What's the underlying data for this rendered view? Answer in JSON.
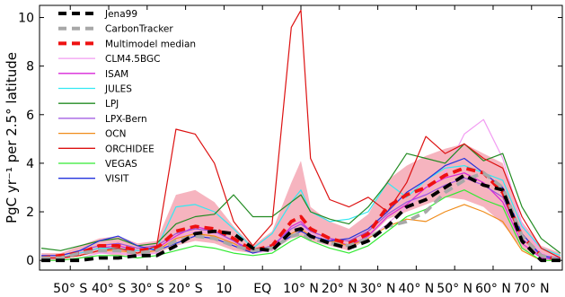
{
  "chart_data": {
    "type": "line",
    "xlabel": "",
    "ylabel": "PgC yr⁻¹ per 2.5° latitude",
    "xlim": [
      -58,
      78
    ],
    "ylim": [
      -0.4,
      10.5
    ],
    "yticks": [
      0,
      2,
      4,
      6,
      8,
      10
    ],
    "xticks": [
      {
        "value": -50,
        "label": "50° S"
      },
      {
        "value": -40,
        "label": "40° S"
      },
      {
        "value": -30,
        "label": "30° S"
      },
      {
        "value": -20,
        "label": "20° S"
      },
      {
        "value": -10,
        "label": "10"
      },
      {
        "value": 0,
        "label": "EQ"
      },
      {
        "value": 10,
        "label": "10° N"
      },
      {
        "value": 20,
        "label": "20° N"
      },
      {
        "value": 30,
        "label": "30° N"
      },
      {
        "value": 40,
        "label": "40° N"
      },
      {
        "value": 50,
        "label": "50° N"
      },
      {
        "value": 60,
        "label": "60° N"
      },
      {
        "value": 70,
        "label": "70° N"
      }
    ],
    "legend_position": "top-left",
    "band": {
      "color": "#f4a7b4",
      "lat": [
        -57.5,
        -52.5,
        -47.5,
        -42.5,
        -37.5,
        -32.5,
        -27.5,
        -22.5,
        -17.5,
        -12.5,
        -7.5,
        -2.5,
        2.5,
        7.5,
        10,
        12.5,
        17.5,
        22.5,
        27.5,
        32.5,
        37.5,
        42.5,
        47.5,
        52.5,
        57.5,
        62.5,
        67.5,
        72.5,
        77.5
      ],
      "lower": [
        0.0,
        0.0,
        0.2,
        0.3,
        0.2,
        0.2,
        0.3,
        0.6,
        0.8,
        0.7,
        0.4,
        0.3,
        0.4,
        0.9,
        1.0,
        0.8,
        0.6,
        0.4,
        0.9,
        1.7,
        2.0,
        2.3,
        2.6,
        2.5,
        2.2,
        1.5,
        0.5,
        0.1,
        0.0
      ],
      "upper": [
        0.3,
        0.3,
        0.6,
        0.9,
        1.0,
        0.7,
        0.8,
        2.7,
        2.9,
        2.4,
        1.4,
        0.6,
        1.2,
        3.2,
        4.1,
        2.2,
        1.6,
        1.3,
        1.9,
        3.3,
        3.9,
        4.3,
        4.6,
        4.8,
        4.4,
        4.0,
        1.6,
        0.6,
        0.3
      ]
    },
    "series": [
      {
        "name": "Jena99",
        "color": "#000000",
        "width": 3.8,
        "dash": "10,6",
        "lat": [
          -57.5,
          -52.5,
          -47.5,
          -42.5,
          -37.5,
          -32.5,
          -27.5,
          -22.5,
          -17.5,
          -12.5,
          -7.5,
          -2.5,
          2.5,
          7.5,
          10,
          12.5,
          17.5,
          22.5,
          27.5,
          32.5,
          37.5,
          42.5,
          47.5,
          52.5,
          57.5,
          62.5,
          67.5,
          72.5,
          77.5
        ],
        "y": [
          0.0,
          0.0,
          0.0,
          0.1,
          0.1,
          0.2,
          0.2,
          0.6,
          1.1,
          1.2,
          1.1,
          0.5,
          0.4,
          1.2,
          1.3,
          1.0,
          0.7,
          0.5,
          0.8,
          1.4,
          2.2,
          2.5,
          3.0,
          3.5,
          3.1,
          2.9,
          0.8,
          0.0,
          0.0
        ]
      },
      {
        "name": "CarbonTracker",
        "color": "#a8a8a8",
        "width": 3.8,
        "dash": "10,6",
        "lat": [
          -57.5,
          -52.5,
          -47.5,
          -42.5,
          -37.5,
          -32.5,
          -27.5,
          -22.5,
          -17.5,
          -12.5,
          -7.5,
          -2.5,
          2.5,
          7.5,
          10,
          12.5,
          17.5,
          22.5,
          27.5,
          32.5,
          37.5,
          42.5,
          47.5,
          52.5,
          57.5,
          62.5,
          67.5,
          72.5,
          77.5
        ],
        "y": [
          0.1,
          0.1,
          0.3,
          0.4,
          0.4,
          0.3,
          0.4,
          0.8,
          1.0,
          0.9,
          0.6,
          0.4,
          0.5,
          1.0,
          1.1,
          0.9,
          0.7,
          0.6,
          0.9,
          1.4,
          1.6,
          2.0,
          2.8,
          3.3,
          3.6,
          3.0,
          1.0,
          0.2,
          0.0
        ]
      },
      {
        "name": "Multimodel median",
        "color": "#ee1111",
        "width": 3.8,
        "dash": "10,6",
        "lat": [
          -57.5,
          -52.5,
          -47.5,
          -42.5,
          -37.5,
          -32.5,
          -27.5,
          -22.5,
          -17.5,
          -12.5,
          -7.5,
          -2.5,
          2.5,
          7.5,
          10,
          12.5,
          17.5,
          22.5,
          27.5,
          32.5,
          37.5,
          42.5,
          47.5,
          52.5,
          57.5,
          62.5,
          67.5,
          72.5,
          77.5
        ],
        "y": [
          0.1,
          0.2,
          0.3,
          0.6,
          0.6,
          0.4,
          0.5,
          1.2,
          1.4,
          1.3,
          0.9,
          0.4,
          0.6,
          1.6,
          1.8,
          1.3,
          0.9,
          0.7,
          1.1,
          2.2,
          2.7,
          3.0,
          3.5,
          3.8,
          3.6,
          2.8,
          1.0,
          0.2,
          0.0
        ]
      },
      {
        "name": "CLM4.5BGC",
        "color": "#f29cf2",
        "width": 1.2,
        "lat": [
          -57.5,
          -52.5,
          -47.5,
          -42.5,
          -37.5,
          -32.5,
          -27.5,
          -22.5,
          -17.5,
          -12.5,
          -7.5,
          -2.5,
          2.5,
          7.5,
          10,
          12.5,
          17.5,
          22.5,
          27.5,
          32.5,
          37.5,
          42.5,
          47.5,
          52.5,
          57.5,
          62.5,
          67.5,
          72.5,
          77.5
        ],
        "y": [
          0.0,
          0.0,
          0.1,
          0.3,
          0.3,
          0.2,
          0.3,
          0.9,
          1.2,
          1.1,
          0.7,
          0.3,
          0.4,
          1.3,
          1.5,
          1.1,
          0.8,
          0.6,
          0.9,
          1.5,
          2.2,
          2.8,
          3.6,
          5.2,
          5.8,
          4.2,
          1.5,
          0.3,
          0.0
        ]
      },
      {
        "name": "ISAM",
        "color": "#d826d8",
        "width": 1.2,
        "lat": [
          -57.5,
          -52.5,
          -47.5,
          -42.5,
          -37.5,
          -32.5,
          -27.5,
          -22.5,
          -17.5,
          -12.5,
          -7.5,
          -2.5,
          2.5,
          7.5,
          10,
          12.5,
          17.5,
          22.5,
          27.5,
          32.5,
          37.5,
          42.5,
          47.5,
          52.5,
          57.5,
          62.5,
          67.5,
          72.5,
          77.5
        ],
        "y": [
          0.1,
          0.1,
          0.3,
          0.5,
          0.6,
          0.4,
          0.5,
          1.0,
          1.4,
          1.2,
          0.8,
          0.3,
          0.5,
          1.4,
          1.6,
          1.2,
          0.9,
          0.6,
          1.0,
          1.8,
          2.3,
          3.0,
          3.4,
          3.6,
          3.2,
          2.4,
          0.7,
          0.1,
          0.0
        ]
      },
      {
        "name": "JULES",
        "color": "#33e8f2",
        "width": 1.2,
        "lat": [
          -57.5,
          -52.5,
          -47.5,
          -42.5,
          -37.5,
          -32.5,
          -27.5,
          -22.5,
          -17.5,
          -12.5,
          -7.5,
          -2.5,
          2.5,
          7.5,
          10,
          12.5,
          17.5,
          22.5,
          27.5,
          32.5,
          37.5,
          42.5,
          47.5,
          52.5,
          57.5,
          62.5,
          67.5,
          72.5,
          77.5
        ],
        "y": [
          0.1,
          0.1,
          0.3,
          0.5,
          0.5,
          0.4,
          0.5,
          2.2,
          2.3,
          2.0,
          1.3,
          0.5,
          1.1,
          2.4,
          2.9,
          2.0,
          1.6,
          1.7,
          2.0,
          3.2,
          2.6,
          3.3,
          3.8,
          3.9,
          3.6,
          3.3,
          1.4,
          0.5,
          0.2
        ]
      },
      {
        "name": "LPJ",
        "color": "#228b22",
        "width": 1.2,
        "lat": [
          -57.5,
          -52.5,
          -47.5,
          -42.5,
          -37.5,
          -32.5,
          -27.5,
          -22.5,
          -17.5,
          -12.5,
          -7.5,
          -2.5,
          2.5,
          7.5,
          10,
          12.5,
          17.5,
          22.5,
          27.5,
          32.5,
          37.5,
          42.5,
          47.5,
          52.5,
          57.5,
          62.5,
          67.5,
          72.5,
          77.5
        ],
        "y": [
          0.5,
          0.4,
          0.6,
          0.8,
          0.9,
          0.6,
          0.7,
          1.5,
          1.8,
          1.9,
          2.7,
          1.8,
          1.8,
          2.4,
          2.7,
          2.0,
          1.7,
          1.5,
          2.2,
          3.2,
          4.4,
          4.2,
          4.0,
          4.8,
          4.1,
          4.4,
          2.2,
          0.9,
          0.3
        ]
      },
      {
        "name": "LPX-Bern",
        "color": "#9b51e0",
        "width": 1.2,
        "lat": [
          -57.5,
          -52.5,
          -47.5,
          -42.5,
          -37.5,
          -32.5,
          -27.5,
          -22.5,
          -17.5,
          -12.5,
          -7.5,
          -2.5,
          2.5,
          7.5,
          10,
          12.5,
          17.5,
          22.5,
          27.5,
          32.5,
          37.5,
          42.5,
          47.5,
          52.5,
          57.5,
          62.5,
          67.5,
          72.5,
          77.5
        ],
        "y": [
          0.2,
          0.2,
          0.4,
          0.6,
          0.7,
          0.5,
          0.6,
          1.1,
          1.3,
          1.2,
          0.8,
          0.4,
          0.6,
          1.3,
          1.5,
          1.2,
          0.9,
          0.8,
          1.2,
          1.9,
          2.4,
          2.7,
          3.1,
          3.4,
          3.1,
          2.6,
          0.9,
          0.2,
          0.1
        ]
      },
      {
        "name": "OCN",
        "color": "#f08c1a",
        "width": 1.2,
        "lat": [
          -57.5,
          -52.5,
          -47.5,
          -42.5,
          -37.5,
          -32.5,
          -27.5,
          -22.5,
          -17.5,
          -12.5,
          -7.5,
          -2.5,
          2.5,
          7.5,
          10,
          12.5,
          17.5,
          22.5,
          27.5,
          32.5,
          37.5,
          42.5,
          47.5,
          52.5,
          57.5,
          62.5,
          67.5,
          72.5,
          77.5
        ],
        "y": [
          0.1,
          0.1,
          0.2,
          0.4,
          0.4,
          0.3,
          0.4,
          0.9,
          1.1,
          1.0,
          0.7,
          0.3,
          0.5,
          1.1,
          1.3,
          1.0,
          0.8,
          0.6,
          0.9,
          1.4,
          1.7,
          1.6,
          2.0,
          2.3,
          2.0,
          1.6,
          0.4,
          0.0,
          0.0
        ]
      },
      {
        "name": "ORCHIDEE",
        "color": "#dd1111",
        "width": 1.2,
        "lat": [
          -57.5,
          -52.5,
          -47.5,
          -42.5,
          -37.5,
          -32.5,
          -27.5,
          -22.5,
          -17.5,
          -12.5,
          -7.5,
          -2.5,
          2.5,
          7.5,
          10,
          12.5,
          17.5,
          22.5,
          27.5,
          32.5,
          37.5,
          42.5,
          47.5,
          52.5,
          57.5,
          62.5,
          67.5,
          72.5,
          77.5
        ],
        "y": [
          0.1,
          0.1,
          0.2,
          0.4,
          0.5,
          0.3,
          0.6,
          5.4,
          5.2,
          4.0,
          1.6,
          0.6,
          1.5,
          9.6,
          10.3,
          4.2,
          2.5,
          2.2,
          2.6,
          2.0,
          3.2,
          5.1,
          4.4,
          4.8,
          4.2,
          3.8,
          1.8,
          0.5,
          0.1
        ]
      },
      {
        "name": "VEGAS",
        "color": "#33ea33",
        "width": 1.2,
        "lat": [
          -57.5,
          -52.5,
          -47.5,
          -42.5,
          -37.5,
          -32.5,
          -27.5,
          -22.5,
          -17.5,
          -12.5,
          -7.5,
          -2.5,
          2.5,
          7.5,
          10,
          12.5,
          17.5,
          22.5,
          27.5,
          32.5,
          37.5,
          42.5,
          47.5,
          52.5,
          57.5,
          62.5,
          67.5,
          72.5,
          77.5
        ],
        "y": [
          0.0,
          0.0,
          0.1,
          0.2,
          0.2,
          0.1,
          0.2,
          0.4,
          0.6,
          0.5,
          0.3,
          0.2,
          0.3,
          0.8,
          1.0,
          0.8,
          0.5,
          0.3,
          0.6,
          1.2,
          1.8,
          2.1,
          2.6,
          2.9,
          2.5,
          2.2,
          0.5,
          0.0,
          0.0
        ]
      },
      {
        "name": "VISIT",
        "color": "#2233dd",
        "width": 1.2,
        "lat": [
          -57.5,
          -52.5,
          -47.5,
          -42.5,
          -37.5,
          -32.5,
          -27.5,
          -22.5,
          -17.5,
          -12.5,
          -7.5,
          -2.5,
          2.5,
          7.5,
          10,
          12.5,
          17.5,
          22.5,
          27.5,
          32.5,
          37.5,
          42.5,
          47.5,
          52.5,
          57.5,
          62.5,
          67.5,
          72.5,
          77.5
        ],
        "y": [
          0.2,
          0.2,
          0.4,
          0.8,
          1.0,
          0.6,
          0.4,
          0.7,
          1.0,
          0.9,
          0.6,
          0.3,
          0.5,
          1.0,
          1.2,
          1.0,
          0.8,
          0.9,
          1.3,
          2.0,
          2.8,
          3.3,
          3.9,
          4.2,
          3.6,
          3.0,
          1.1,
          0.2,
          0.0
        ]
      }
    ]
  }
}
